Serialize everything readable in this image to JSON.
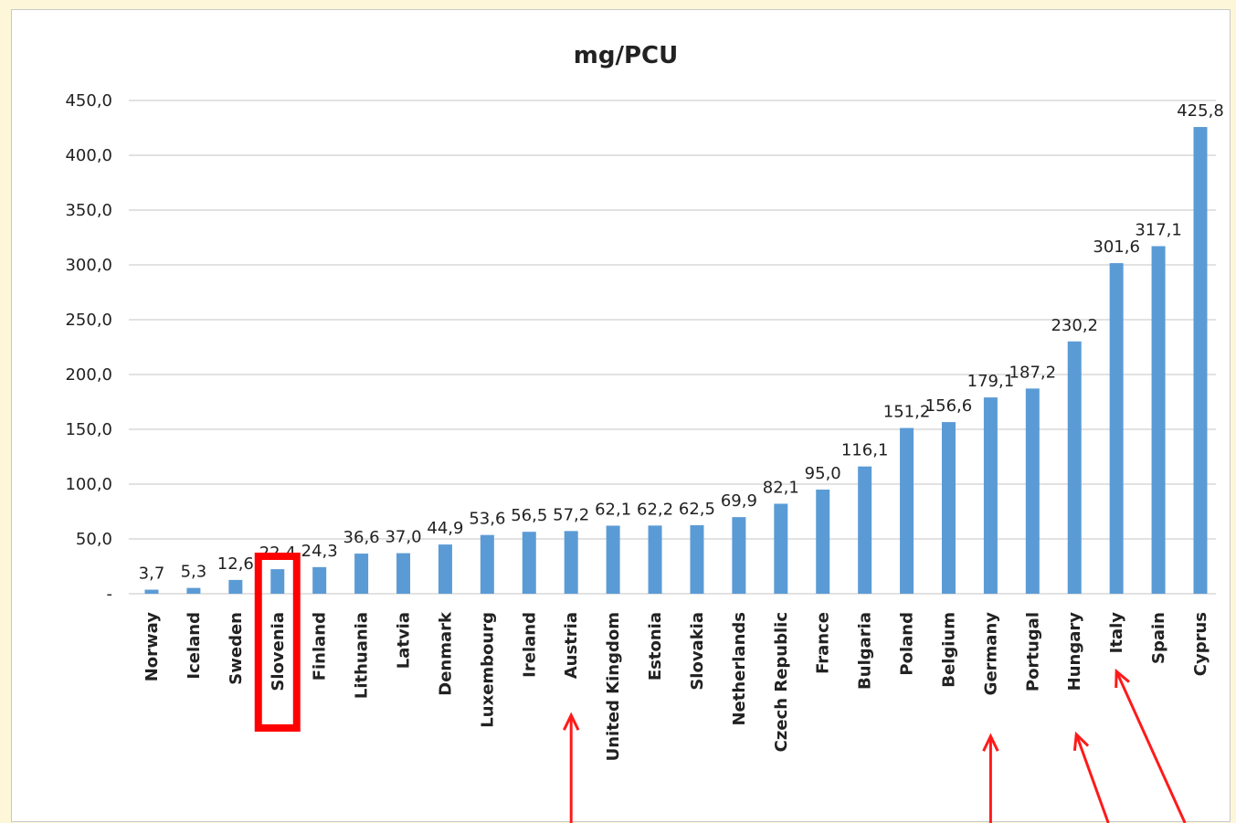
{
  "chart_data": {
    "type": "bar",
    "title": "mg/PCU",
    "xlabel": "",
    "ylabel": "",
    "ylim": [
      0,
      450
    ],
    "grid": true,
    "legend": "none",
    "yticks": [
      "-",
      "50,0",
      "100,0",
      "150,0",
      "200,0",
      "250,0",
      "300,0",
      "350,0",
      "400,0",
      "450,0"
    ],
    "categories": [
      "Norway",
      "Iceland",
      "Sweden",
      "Slovenia",
      "Finland",
      "Lithuania",
      "Latvia",
      "Denmark",
      "Luxembourg",
      "Ireland",
      "Austria",
      "United Kingdom",
      "Estonia",
      "Slovakia",
      "Netherlands",
      "Czech Republic",
      "France",
      "Bulgaria",
      "Poland",
      "Belgium",
      "Germany",
      "Portugal",
      "Hungary",
      "Italy",
      "Spain",
      "Cyprus"
    ],
    "values": [
      3.7,
      5.3,
      12.6,
      22.4,
      24.3,
      36.6,
      37.0,
      44.9,
      53.6,
      56.5,
      57.2,
      62.1,
      62.2,
      62.5,
      69.9,
      82.1,
      95.0,
      116.1,
      151.2,
      156.6,
      179.1,
      187.2,
      230.2,
      301.6,
      317.1,
      425.8
    ],
    "data_labels": [
      "3,7",
      "5,3",
      "12,6",
      "22,4",
      "24,3",
      "36,6",
      "37,0",
      "44,9",
      "53,6",
      "56,5",
      "57,2",
      "62,1",
      "62,2",
      "62,5",
      "69,9",
      "82,1",
      "95,0",
      "116,1",
      "151,2",
      "156,6",
      "179,1",
      "187,2",
      "230,2",
      "301,6",
      "317,1",
      "425,8"
    ],
    "highlighted": [
      "Slovenia"
    ],
    "arrows_to": [
      "Austria",
      "Germany",
      "Hungary",
      "Italy"
    ]
  },
  "colors": {
    "bar": "#5b9bd5",
    "highlight_box": "#ff0000",
    "arrow": "#ff1a1a",
    "grid": "#d9d9d9",
    "background": "#fdf6d8"
  }
}
